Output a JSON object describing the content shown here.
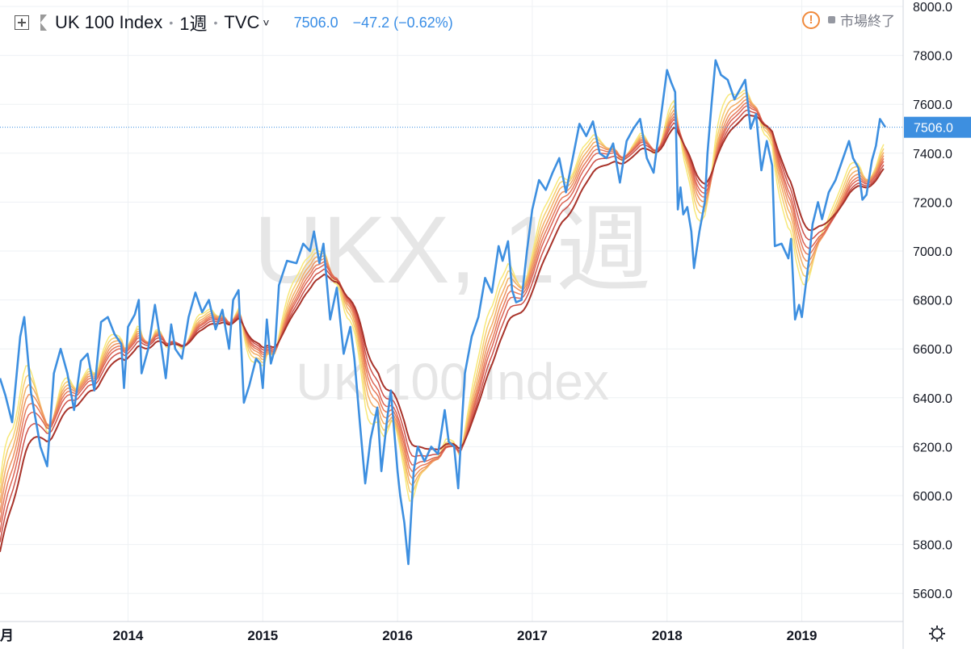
{
  "header": {
    "symbol": "UK 100 Index",
    "interval": "1週",
    "source": "TVC",
    "source_chevron": "˅",
    "price": "7506.0",
    "change": "−47.2 (−0.62%)",
    "status": "市場終了",
    "icons": [
      "add-compare-icon",
      "flag-icon",
      "warning-icon",
      "gear-icon"
    ]
  },
  "watermark": {
    "line1": "UKX, 1週",
    "line2": "UK 100 Index"
  },
  "colors": {
    "price_line": "#3d8fe0",
    "grid": "#eef1f4",
    "ribbon": [
      "#f7e87a",
      "#f6cd6e",
      "#f3ad64",
      "#ee925e",
      "#e7795a",
      "#dc6454",
      "#cd5048",
      "#a8332a"
    ]
  },
  "chart_data": {
    "type": "line",
    "title": "UK 100 Index",
    "xlabel": "",
    "ylabel": "",
    "xlim": [
      2013.05,
      2019.65
    ],
    "ylim": [
      5500,
      8000
    ],
    "x_ticks": [
      {
        "x": 2013.0,
        "label": "月"
      },
      {
        "x": 2014.0,
        "label": "2014"
      },
      {
        "x": 2015.0,
        "label": "2015"
      },
      {
        "x": 2016.0,
        "label": "2016"
      },
      {
        "x": 2017.0,
        "label": "2017"
      },
      {
        "x": 2018.0,
        "label": "2018"
      },
      {
        "x": 2019.0,
        "label": "2019"
      }
    ],
    "y_ticks": [
      "5600.0",
      "5800.0",
      "6000.0",
      "6200.0",
      "6400.0",
      "6600.0",
      "6800.0",
      "7000.0",
      "7200.0",
      "7400.0",
      "7600.0",
      "7800.0",
      "8000.0"
    ],
    "last_price": {
      "value": 7506.0,
      "label": "7506.0"
    },
    "grid": true,
    "series": [
      {
        "points": [
          [
            2013.05,
            6480
          ],
          [
            2013.09,
            6410
          ],
          [
            2013.14,
            6300
          ],
          [
            2013.2,
            6650
          ],
          [
            2013.23,
            6730
          ],
          [
            2013.28,
            6420
          ],
          [
            2013.35,
            6200
          ],
          [
            2013.4,
            6120
          ],
          [
            2013.45,
            6500
          ],
          [
            2013.5,
            6600
          ],
          [
            2013.55,
            6500
          ],
          [
            2013.6,
            6350
          ],
          [
            2013.65,
            6550
          ],
          [
            2013.7,
            6580
          ],
          [
            2013.75,
            6430
          ],
          [
            2013.8,
            6710
          ],
          [
            2013.85,
            6730
          ],
          [
            2013.9,
            6660
          ],
          [
            2013.95,
            6620
          ],
          [
            2013.97,
            6440
          ],
          [
            2014.0,
            6690
          ],
          [
            2014.05,
            6740
          ],
          [
            2014.08,
            6800
          ],
          [
            2014.1,
            6500
          ],
          [
            2014.15,
            6600
          ],
          [
            2014.2,
            6780
          ],
          [
            2014.25,
            6600
          ],
          [
            2014.28,
            6480
          ],
          [
            2014.32,
            6700
          ],
          [
            2014.35,
            6600
          ],
          [
            2014.4,
            6560
          ],
          [
            2014.45,
            6730
          ],
          [
            2014.5,
            6830
          ],
          [
            2014.55,
            6750
          ],
          [
            2014.6,
            6800
          ],
          [
            2014.65,
            6680
          ],
          [
            2014.7,
            6760
          ],
          [
            2014.75,
            6600
          ],
          [
            2014.78,
            6800
          ],
          [
            2014.82,
            6840
          ],
          [
            2014.86,
            6380
          ],
          [
            2014.9,
            6450
          ],
          [
            2014.95,
            6560
          ],
          [
            2014.98,
            6540
          ],
          [
            2015.0,
            6440
          ],
          [
            2015.03,
            6720
          ],
          [
            2015.06,
            6540
          ],
          [
            2015.09,
            6600
          ],
          [
            2015.12,
            6860
          ],
          [
            2015.18,
            6960
          ],
          [
            2015.25,
            6950
          ],
          [
            2015.3,
            7030
          ],
          [
            2015.35,
            7000
          ],
          [
            2015.38,
            7080
          ],
          [
            2015.42,
            6950
          ],
          [
            2015.45,
            7030
          ],
          [
            2015.5,
            6720
          ],
          [
            2015.55,
            6850
          ],
          [
            2015.6,
            6580
          ],
          [
            2015.65,
            6690
          ],
          [
            2015.68,
            6560
          ],
          [
            2015.72,
            6300
          ],
          [
            2015.76,
            6050
          ],
          [
            2015.8,
            6230
          ],
          [
            2015.85,
            6360
          ],
          [
            2015.88,
            6100
          ],
          [
            2015.92,
            6300
          ],
          [
            2015.95,
            6430
          ],
          [
            2016.0,
            6100
          ],
          [
            2016.02,
            6000
          ],
          [
            2016.05,
            5890
          ],
          [
            2016.08,
            5720
          ],
          [
            2016.12,
            6100
          ],
          [
            2016.15,
            6200
          ],
          [
            2016.2,
            6140
          ],
          [
            2016.25,
            6200
          ],
          [
            2016.3,
            6170
          ],
          [
            2016.35,
            6350
          ],
          [
            2016.38,
            6220
          ],
          [
            2016.42,
            6200
          ],
          [
            2016.45,
            6030
          ],
          [
            2016.48,
            6320
          ],
          [
            2016.5,
            6500
          ],
          [
            2016.55,
            6650
          ],
          [
            2016.6,
            6730
          ],
          [
            2016.65,
            6890
          ],
          [
            2016.7,
            6830
          ],
          [
            2016.75,
            7020
          ],
          [
            2016.78,
            6960
          ],
          [
            2016.82,
            7040
          ],
          [
            2016.85,
            6840
          ],
          [
            2016.88,
            6790
          ],
          [
            2016.92,
            6800
          ],
          [
            2016.96,
            7000
          ],
          [
            2017.0,
            7170
          ],
          [
            2017.05,
            7290
          ],
          [
            2017.1,
            7250
          ],
          [
            2017.15,
            7320
          ],
          [
            2017.2,
            7380
          ],
          [
            2017.25,
            7240
          ],
          [
            2017.3,
            7380
          ],
          [
            2017.35,
            7520
          ],
          [
            2017.4,
            7470
          ],
          [
            2017.45,
            7530
          ],
          [
            2017.5,
            7400
          ],
          [
            2017.55,
            7380
          ],
          [
            2017.6,
            7440
          ],
          [
            2017.65,
            7280
          ],
          [
            2017.7,
            7450
          ],
          [
            2017.75,
            7500
          ],
          [
            2017.8,
            7540
          ],
          [
            2017.85,
            7380
          ],
          [
            2017.9,
            7320
          ],
          [
            2017.95,
            7530
          ],
          [
            2018.0,
            7740
          ],
          [
            2018.03,
            7690
          ],
          [
            2018.06,
            7650
          ],
          [
            2018.08,
            7170
          ],
          [
            2018.1,
            7260
          ],
          [
            2018.12,
            7150
          ],
          [
            2018.15,
            7180
          ],
          [
            2018.18,
            7080
          ],
          [
            2018.2,
            6930
          ],
          [
            2018.24,
            7080
          ],
          [
            2018.28,
            7200
          ],
          [
            2018.3,
            7400
          ],
          [
            2018.33,
            7600
          ],
          [
            2018.36,
            7780
          ],
          [
            2018.4,
            7720
          ],
          [
            2018.45,
            7700
          ],
          [
            2018.5,
            7620
          ],
          [
            2018.55,
            7670
          ],
          [
            2018.58,
            7700
          ],
          [
            2018.62,
            7500
          ],
          [
            2018.66,
            7560
          ],
          [
            2018.7,
            7330
          ],
          [
            2018.74,
            7450
          ],
          [
            2018.78,
            7350
          ],
          [
            2018.8,
            7020
          ],
          [
            2018.85,
            7030
          ],
          [
            2018.9,
            6970
          ],
          [
            2018.92,
            7050
          ],
          [
            2018.95,
            6720
          ],
          [
            2018.98,
            6780
          ],
          [
            2019.0,
            6730
          ],
          [
            2019.02,
            6820
          ],
          [
            2019.05,
            6950
          ],
          [
            2019.08,
            7110
          ],
          [
            2019.12,
            7200
          ],
          [
            2019.15,
            7130
          ],
          [
            2019.2,
            7240
          ],
          [
            2019.25,
            7290
          ],
          [
            2019.3,
            7370
          ],
          [
            2019.35,
            7450
          ],
          [
            2019.38,
            7380
          ],
          [
            2019.42,
            7340
          ],
          [
            2019.45,
            7210
          ],
          [
            2019.48,
            7230
          ],
          [
            2019.52,
            7370
          ],
          [
            2019.55,
            7430
          ],
          [
            2019.58,
            7540
          ],
          [
            2019.62,
            7506
          ]
        ]
      }
    ]
  }
}
